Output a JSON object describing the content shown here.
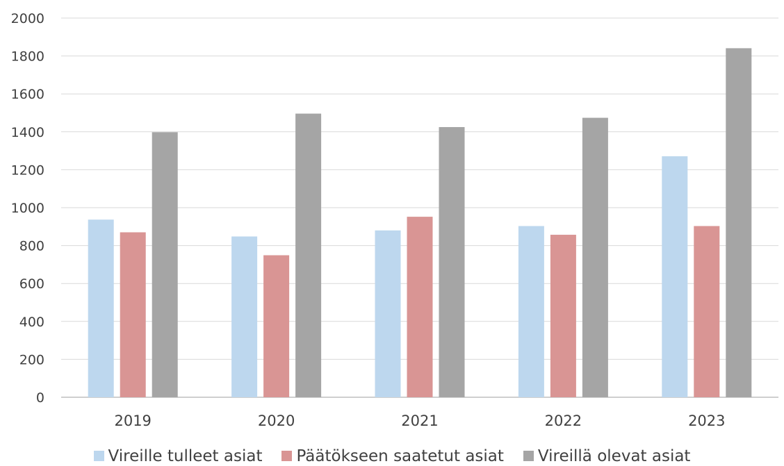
{
  "chart_data": {
    "type": "bar",
    "categories": [
      "2019",
      "2020",
      "2021",
      "2022",
      "2023"
    ],
    "series": [
      {
        "name": "Vireille tulleet asiat",
        "color": "#bdd7ee",
        "values": [
          937,
          848,
          880,
          903,
          1271
        ]
      },
      {
        "name": "Päätökseen saatetut asiat",
        "color": "#d99594",
        "values": [
          870,
          749,
          952,
          857,
          903
        ]
      },
      {
        "name": "Vireillä olevat asiat",
        "color": "#a5a5a5",
        "values": [
          1398,
          1496,
          1425,
          1474,
          1841
        ]
      }
    ],
    "ylim": [
      0,
      2000
    ],
    "yticks": [
      "0",
      "200",
      "400",
      "600",
      "800",
      "1000",
      "1200",
      "1400",
      "1600",
      "1800",
      "2000"
    ],
    "grid": true,
    "legend_position": "bottom",
    "title": "",
    "xlabel": "",
    "ylabel": ""
  }
}
